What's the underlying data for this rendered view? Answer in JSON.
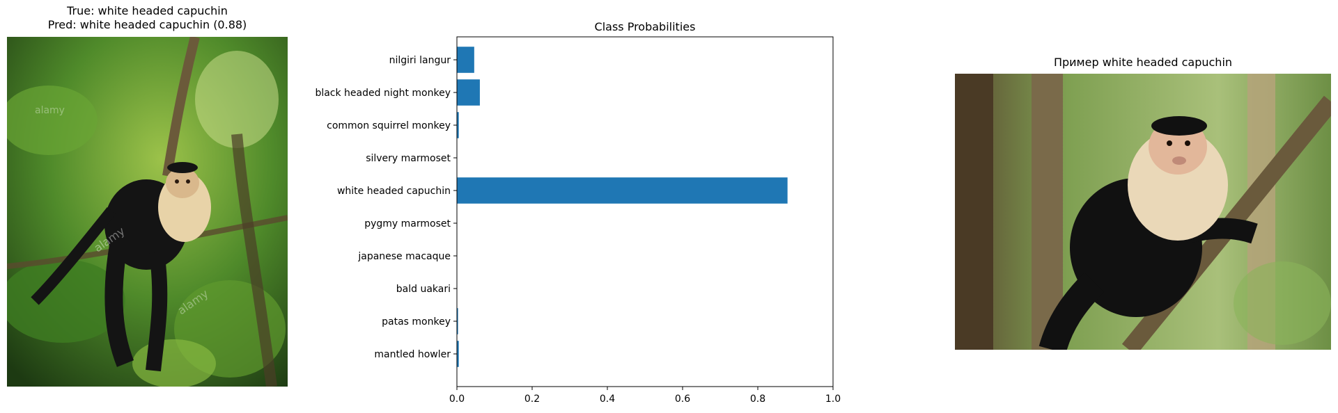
{
  "left_panel": {
    "title_line1": "True: white headed capuchin",
    "title_line2": "Pred: white headed capuchin (0.88)",
    "watermark": "alamy"
  },
  "right_panel": {
    "title": "Пример white headed capuchin"
  },
  "chart_data": {
    "type": "bar",
    "orientation": "horizontal",
    "title": "Class Probabilities",
    "xlabel": "",
    "ylabel": "",
    "categories": [
      "nilgiri langur",
      "black headed night monkey",
      "common squirrel monkey",
      "silvery marmoset",
      "white headed capuchin",
      "pygmy marmoset",
      "japanese macaque",
      "bald uakari",
      "patas monkey",
      "mantled howler"
    ],
    "values": [
      0.046,
      0.061,
      0.005,
      0.0,
      0.879,
      0.0,
      0.0,
      0.0,
      0.003,
      0.005
    ],
    "xlim": [
      0,
      1.0
    ],
    "xticks": [
      "0.0",
      "0.2",
      "0.4",
      "0.6",
      "0.8",
      "1.0"
    ],
    "grid": false,
    "bar_color": "#1f77b4"
  }
}
